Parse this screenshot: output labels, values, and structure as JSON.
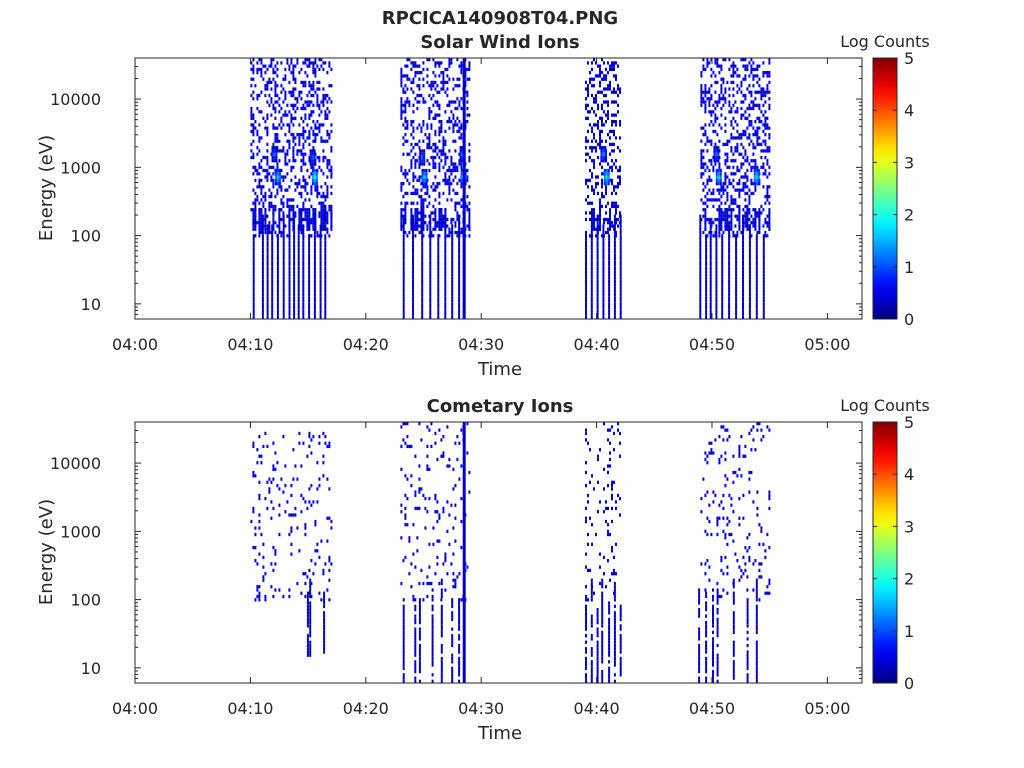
{
  "figure": {
    "title": "RPCICA140908T04.PNG"
  },
  "colors": {
    "colormap": "jet",
    "background": "#ffffff",
    "axes": "#262626"
  },
  "chart_data": [
    {
      "type": "heatmap",
      "title": "Solar Wind Ions",
      "xlabel": "Time",
      "ylabel": "Energy (eV)",
      "x_ticks": [
        "04:00",
        "04:10",
        "04:20",
        "04:30",
        "04:40",
        "04:50",
        "05:00"
      ],
      "x_range": [
        "04:00",
        "05:03"
      ],
      "y_scale": "log",
      "y_ticks": [
        "10",
        "100",
        "1000",
        "10000"
      ],
      "y_range": [
        6,
        40000
      ],
      "colorbar": {
        "label": "Log Counts",
        "ticks": [
          "0",
          "1",
          "2",
          "3",
          "4",
          "5"
        ],
        "range": [
          0,
          5
        ]
      },
      "bursts": [
        {
          "start": "04:10",
          "end": "04:17",
          "min_energy": 6,
          "max_energy": 38000,
          "low_energy_columns": [
            10.2,
            11.0,
            11.4,
            11.8,
            12.3,
            12.8,
            13.3,
            13.7,
            14.1,
            14.5,
            15.0,
            15.5,
            16.0,
            16.4
          ],
          "peaks": [
            {
              "time": "04:12.3",
              "energy": 700,
              "log_counts": 1.6
            },
            {
              "time": "04:12.0",
              "energy": 1500,
              "log_counts": 1.2
            },
            {
              "time": "04:15.5",
              "energy": 700,
              "log_counts": 1.8
            },
            {
              "time": "04:15.3",
              "energy": 1400,
              "log_counts": 1.1
            }
          ]
        },
        {
          "start": "04:23",
          "end": "04:29",
          "min_energy": 6,
          "max_energy": 40000,
          "low_energy_columns": [
            23.2,
            24.0,
            24.8,
            25.5,
            26.2,
            26.8,
            27.4,
            28.0,
            28.4
          ],
          "peaks": [
            {
              "time": "04:25.0",
              "energy": 700,
              "log_counts": 1.6
            },
            {
              "time": "04:24.8",
              "energy": 1400,
              "log_counts": 1.1
            },
            {
              "time": "04:28.4",
              "energy": 700,
              "log_counts": 1.7
            },
            {
              "time": "04:28.3",
              "energy": 1500,
              "log_counts": 1.2
            }
          ]
        },
        {
          "start": "04:39",
          "end": "04:42",
          "min_energy": 6,
          "max_energy": 40000,
          "low_energy_columns": [
            39.0,
            39.5,
            40.0,
            40.5,
            41.0,
            41.5,
            42.0
          ],
          "peaks": [
            {
              "time": "04:40.8",
              "energy": 700,
              "log_counts": 1.8
            },
            {
              "time": "04:40.5",
              "energy": 1500,
              "log_counts": 1.3
            }
          ]
        },
        {
          "start": "04:49",
          "end": "04:55",
          "min_energy": 6,
          "max_energy": 40000,
          "low_energy_columns": [
            48.9,
            49.4,
            49.8,
            50.3,
            50.8,
            51.4,
            52.0,
            52.6,
            53.2,
            53.8,
            54.4
          ],
          "peaks": [
            {
              "time": "04:50.5",
              "energy": 700,
              "log_counts": 1.6
            },
            {
              "time": "04:50.3",
              "energy": 1500,
              "log_counts": 1.2
            },
            {
              "time": "04:53.8",
              "energy": 700,
              "log_counts": 1.7
            }
          ]
        }
      ],
      "spikes": [
        {
          "time": "04:28.4",
          "min_energy": 6,
          "max_energy": 40000
        }
      ]
    },
    {
      "type": "heatmap",
      "title": "Cometary Ions",
      "xlabel": "Time",
      "ylabel": "Energy (eV)",
      "x_ticks": [
        "04:00",
        "04:10",
        "04:20",
        "04:30",
        "04:40",
        "04:50",
        "05:00"
      ],
      "x_range": [
        "04:00",
        "05:03"
      ],
      "y_scale": "log",
      "y_ticks": [
        "10",
        "100",
        "1000",
        "10000"
      ],
      "y_range": [
        6,
        40000
      ],
      "colorbar": {
        "label": "Log Counts",
        "ticks": [
          "0",
          "1",
          "2",
          "3",
          "4",
          "5"
        ],
        "range": [
          0,
          5
        ]
      },
      "bursts": [
        {
          "start": "04:10",
          "end": "04:17",
          "min_energy": 16,
          "max_energy": 26000,
          "low_energy_columns": [
            14.9,
            15.1,
            16.3
          ],
          "peaks": []
        },
        {
          "start": "04:23",
          "end": "04:29",
          "min_energy": 6,
          "max_energy": 40000,
          "low_energy_columns": [
            23.2,
            24.2,
            24.6,
            25.7,
            26.5,
            27.4,
            28.0
          ],
          "peaks": []
        },
        {
          "start": "04:39",
          "end": "04:42",
          "min_energy": 6,
          "max_energy": 40000,
          "low_energy_columns": [
            39.0,
            39.5,
            40.0,
            40.4,
            41.0,
            41.5,
            42.0
          ],
          "peaks": []
        },
        {
          "start": "04:49",
          "end": "04:55",
          "min_energy": 6,
          "max_energy": 40000,
          "low_energy_columns": [
            48.8,
            49.4,
            50.0,
            50.4,
            51.8,
            53.0,
            53.8
          ],
          "peaks": []
        }
      ],
      "spikes": [
        {
          "time": "04:28.4",
          "min_energy": 6,
          "max_energy": 40000
        }
      ]
    }
  ]
}
